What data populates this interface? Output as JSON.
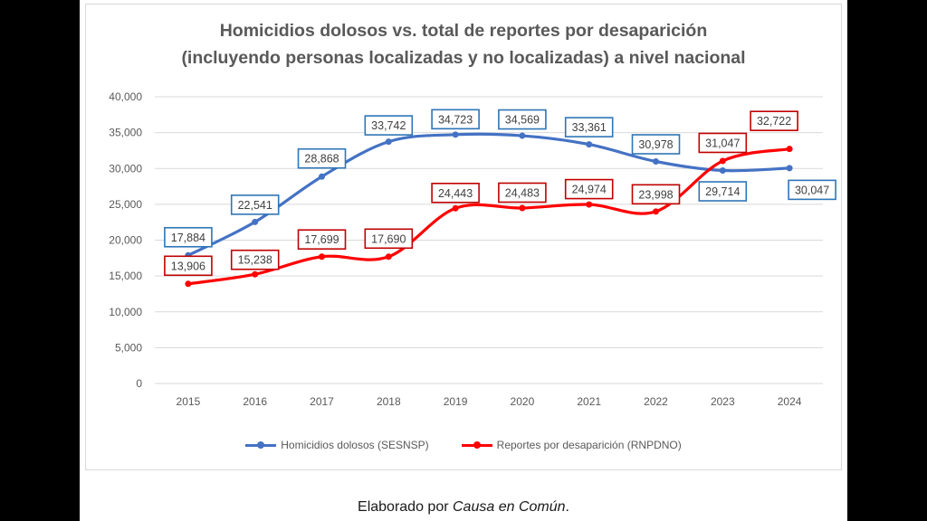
{
  "caption": {
    "prefix": "Elaborado por ",
    "source": "Causa en Común",
    "suffix": "."
  },
  "chart_data": {
    "type": "line",
    "title": [
      "Homicidios dolosos vs. total de reportes por desaparición",
      "(incluyendo personas localizadas y no localizadas) a nivel nacional"
    ],
    "xlabel": "",
    "ylabel": "",
    "categories": [
      "2015",
      "2016",
      "2017",
      "2018",
      "2019",
      "2020",
      "2021",
      "2022",
      "2023",
      "2024"
    ],
    "ylim": [
      0,
      40000
    ],
    "yticks": [
      "0",
      "5,000",
      "10,000",
      "15,000",
      "20,000",
      "25,000",
      "30,000",
      "35,000",
      "40,000"
    ],
    "grid": true,
    "legend_position": "bottom",
    "series": [
      {
        "name": "Homicidios dolosos (SESNSP)",
        "color": "#4472c4",
        "label_border": "#2e75b6",
        "values": [
          17884,
          22541,
          28868,
          33742,
          34723,
          34569,
          33361,
          30978,
          29714,
          30047
        ],
        "labels": [
          "17,884",
          "22,541",
          "28,868",
          "33,742",
          "34,723",
          "34,569",
          "33,361",
          "30,978",
          "29,714",
          "30,047"
        ]
      },
      {
        "name": "Reportes por desaparición (RNPDNO)",
        "color": "#ff0000",
        "label_border": "#c00000",
        "values": [
          13906,
          15238,
          17699,
          17690,
          24443,
          24483,
          24974,
          23998,
          31047,
          32722
        ],
        "labels": [
          "13,906",
          "15,238",
          "17,699",
          "17,690",
          "24,443",
          "24,483",
          "24,974",
          "23,998",
          "31,047",
          "32,722"
        ]
      }
    ]
  }
}
